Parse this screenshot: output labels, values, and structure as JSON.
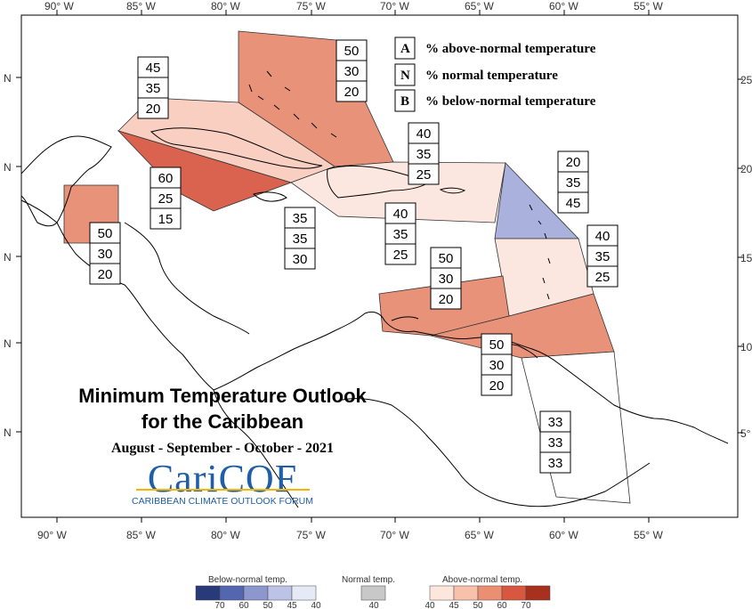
{
  "map": {
    "title_line1": "Minimum Temperature Outlook",
    "title_line2": "for the Caribbean",
    "period": "August - September - October - 2021",
    "logo_text": "CariCOF",
    "logo_caption": "CARIBBEAN CLIMATE OUTLOOK FORUM",
    "longitude_labels": [
      "90° W",
      "85° W",
      "80° W",
      "75° W",
      "70° W",
      "65° W",
      "60° W",
      "55° W"
    ],
    "latitude_left_labels": [
      "N",
      "N",
      "N",
      "N",
      "N"
    ],
    "latitude_right_labels": [
      "25°",
      "20°",
      "15°",
      "10°",
      "5°"
    ]
  },
  "key": {
    "items": [
      {
        "letter": "A",
        "text": "% above-normal temperature"
      },
      {
        "letter": "N",
        "text": "% normal temperature"
      },
      {
        "letter": "B",
        "text": "% below-normal temperature"
      }
    ]
  },
  "regions": [
    {
      "id": "bahamas-ne",
      "above": "50",
      "normal": "30",
      "below": "20",
      "color": "#e8927a"
    },
    {
      "id": "cuba",
      "above": "45",
      "normal": "35",
      "below": "20",
      "color": "#f8cfc0"
    },
    {
      "id": "cayman",
      "above": "60",
      "normal": "25",
      "below": "15",
      "color": "#d9634e"
    },
    {
      "id": "belize",
      "above": "50",
      "normal": "30",
      "below": "20",
      "color": "#e8927a"
    },
    {
      "id": "jamaica",
      "above": "35",
      "normal": "35",
      "below": "30",
      "color": "#ffffff"
    },
    {
      "id": "hispaniola-north",
      "above": "40",
      "normal": "35",
      "below": "25",
      "color": "#fbe7df"
    },
    {
      "id": "hispaniola-pr",
      "above": "40",
      "normal": "35",
      "below": "25",
      "color": "#fbe7df"
    },
    {
      "id": "leeward",
      "above": "20",
      "normal": "35",
      "below": "45",
      "color": "#a9b1dc"
    },
    {
      "id": "windward",
      "above": "40",
      "normal": "35",
      "below": "25",
      "color": "#fbe7df"
    },
    {
      "id": "abc-islands",
      "above": "50",
      "normal": "30",
      "below": "20",
      "color": "#e8927a"
    },
    {
      "id": "trinidad",
      "above": "50",
      "normal": "30",
      "below": "20",
      "color": "#e8927a"
    },
    {
      "id": "guianas",
      "above": "33",
      "normal": "33",
      "below": "33",
      "color": "#ffffff"
    }
  ],
  "legend": {
    "below_label": "Below-normal temp.",
    "normal_label": "Normal temp.",
    "above_label": "Above-normal temp.",
    "below_ticks": [
      "70",
      "60",
      "50",
      "45",
      "40"
    ],
    "normal_ticks": [
      "40"
    ],
    "above_ticks": [
      "40",
      "45",
      "50",
      "60",
      "70"
    ],
    "below_colors": [
      "#283a7a",
      "#5366b0",
      "#8c97cd",
      "#bcc3e6",
      "#e6e9f6"
    ],
    "normal_color": "#c8c8c8",
    "above_colors": [
      "#fde6dc",
      "#f9c0aa",
      "#ec8e72",
      "#d8573f",
      "#a8301f"
    ]
  }
}
